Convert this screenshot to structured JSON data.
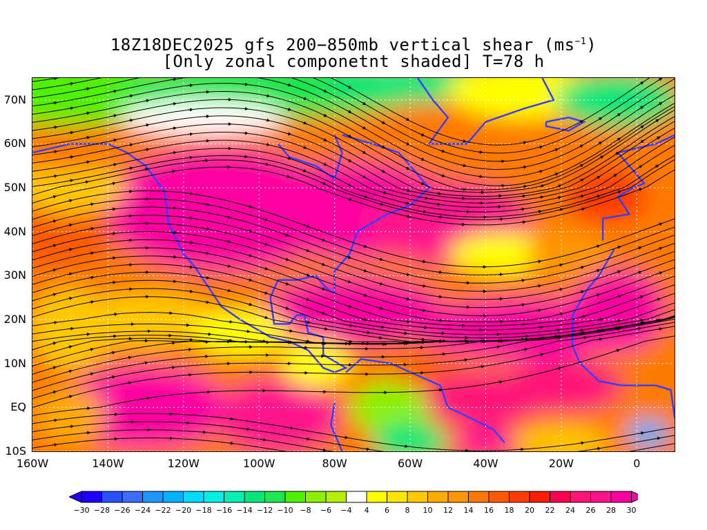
{
  "title": {
    "line1_prefix": "18Z18DEC2025 gfs 200−850mb vertical shear (ms",
    "line1_sup": "−1",
    "line1_suffix": ")",
    "line2": "[Only zonal componetnt shaded] T=78 h"
  },
  "axes": {
    "lat_labels": [
      "70N",
      "60N",
      "50N",
      "40N",
      "30N",
      "20N",
      "10N",
      "EQ",
      "10S"
    ],
    "lat_values": [
      70,
      60,
      50,
      40,
      30,
      20,
      10,
      0,
      -10
    ],
    "lon_labels": [
      "160W",
      "140W",
      "120W",
      "100W",
      "80W",
      "60W",
      "40W",
      "20W",
      "0"
    ],
    "lon_values": [
      -160,
      -140,
      -120,
      -100,
      -80,
      -60,
      -40,
      -20,
      0
    ],
    "lon_range": [
      -160,
      10
    ],
    "lat_range": [
      -10,
      75
    ]
  },
  "colorbar": {
    "labels": [
      "−30",
      "−28",
      "−26",
      "−24",
      "−22",
      "−20",
      "−18",
      "−16",
      "−14",
      "−12",
      "−10",
      "−8",
      "−6",
      "−4",
      "4",
      "6",
      "8",
      "10",
      "12",
      "14",
      "16",
      "18",
      "20",
      "22",
      "24",
      "26",
      "28",
      "30"
    ],
    "colors": [
      "#1e00ff",
      "#2850ff",
      "#3c6eff",
      "#1e96ff",
      "#00b4ff",
      "#00dcff",
      "#00f0e6",
      "#00f0b4",
      "#00e678",
      "#1ee650",
      "#50f000",
      "#8cf000",
      "#b4f000",
      "#ffffff",
      "#ffff00",
      "#ffe600",
      "#ffc800",
      "#ffaa00",
      "#ff9600",
      "#ff7800",
      "#ff5a00",
      "#ff3c00",
      "#ff1e00",
      "#ff0050",
      "#ff1478",
      "#ff148c",
      "#ff00a0"
    ]
  }
}
